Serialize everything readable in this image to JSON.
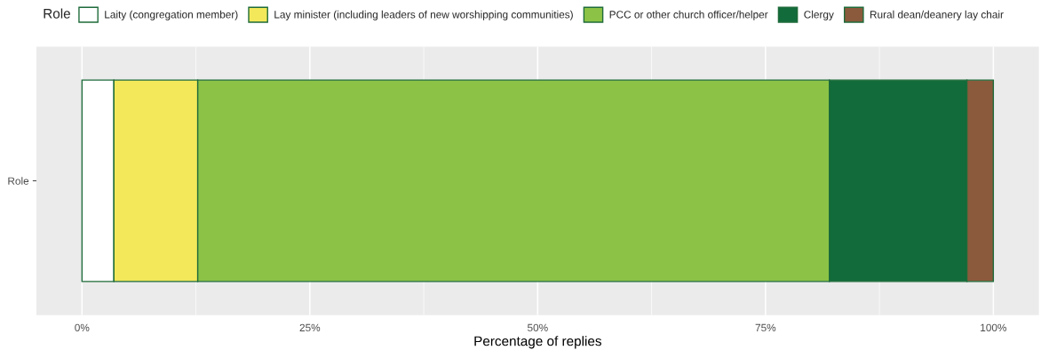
{
  "chart_data": {
    "type": "bar",
    "orientation": "horizontal",
    "stacked": true,
    "xlabel": "Percentage of replies",
    "legend_title": "Role",
    "legend": "top",
    "categories": [
      "Role"
    ],
    "series": [
      {
        "name": "Laity (congregation member)",
        "color": "#ffffff",
        "values": [
          3.5
        ]
      },
      {
        "name": "Lay minister (including leaders of new worshipping communities)",
        "color": "#f2e85a",
        "values": [
          9.2
        ]
      },
      {
        "name": "PCC or other church officer/helper",
        "color": "#8cc346",
        "values": [
          69.3
        ]
      },
      {
        "name": "Clergy",
        "color": "#126b3a",
        "values": [
          15.1
        ]
      },
      {
        "name": "Rural dean/deanery lay chair",
        "color": "#8b5a3c",
        "values": [
          2.9
        ]
      }
    ],
    "xlim": [
      -5,
      105
    ],
    "xticks": [
      {
        "value": 0,
        "label": "0%"
      },
      {
        "value": 25,
        "label": "25%"
      },
      {
        "value": 50,
        "label": "50%"
      },
      {
        "value": 75,
        "label": "75%"
      },
      {
        "value": 100,
        "label": "100%"
      }
    ],
    "grid": "x"
  }
}
